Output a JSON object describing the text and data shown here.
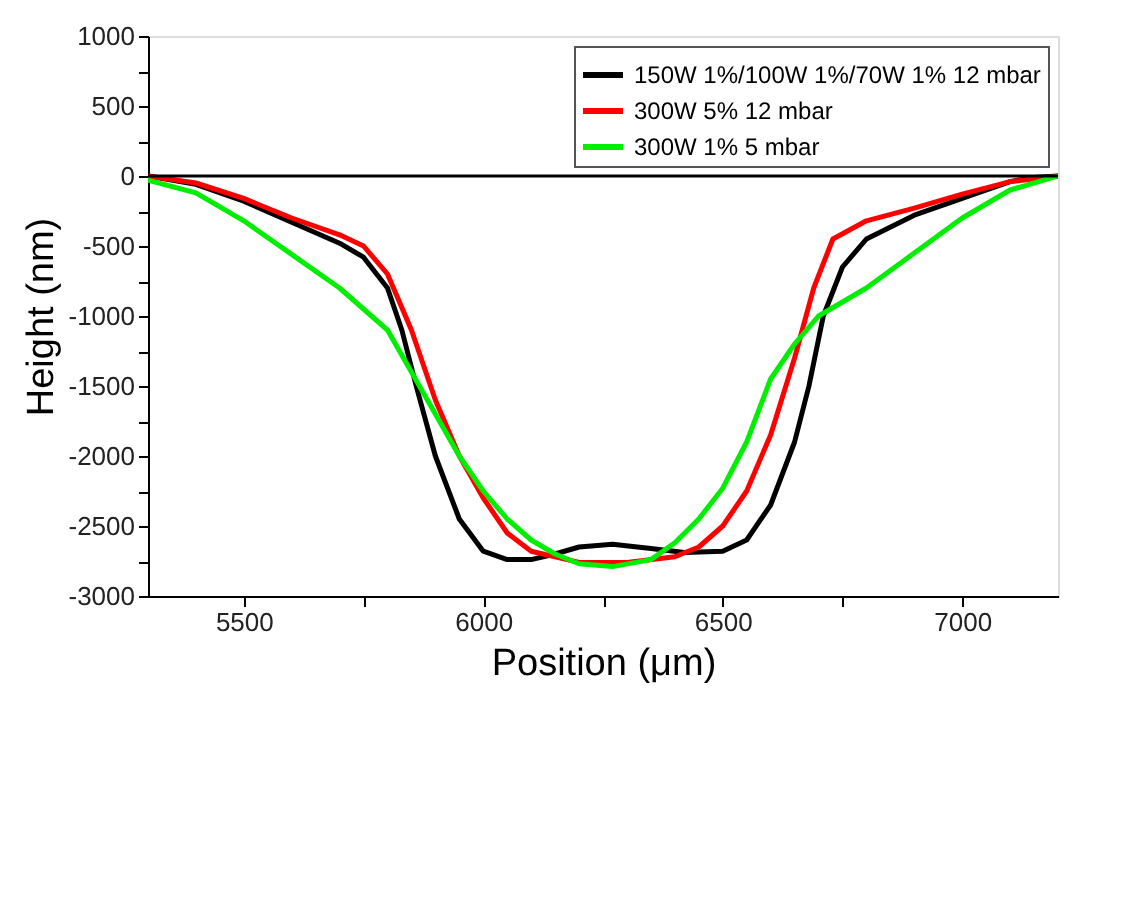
{
  "chart_data": {
    "type": "line",
    "xlabel": "Position (μm)",
    "ylabel": "Height (nm)",
    "xlim": [
      5300,
      7200
    ],
    "ylim": [
      -3000,
      1000
    ],
    "xticks": [
      5500,
      {
        "value": 5750,
        "label": null
      },
      6000,
      {
        "value": 6250,
        "label": null
      },
      6500,
      {
        "value": 6750,
        "label": null
      },
      7000
    ],
    "yticks": [
      -3000,
      {
        "value": -2750,
        "label": null
      },
      -2500,
      {
        "value": -2250,
        "label": null
      },
      -2000,
      {
        "value": -1750,
        "label": null
      },
      -1500,
      {
        "value": -1250,
        "label": null
      },
      -1000,
      {
        "value": -750,
        "label": null
      },
      -500,
      {
        "value": -250,
        "label": null
      },
      0,
      {
        "value": 250,
        "label": null
      },
      500,
      {
        "value": 750,
        "label": null
      },
      1000
    ],
    "grid": false,
    "legend": "top right",
    "line_style": "solid",
    "marker": "none",
    "ref_lines": [
      {
        "axis": "y",
        "value": 0,
        "color": "#000000"
      }
    ],
    "series": [
      {
        "name": "150W 1%/100W 1%/70W 1% 12 mbar",
        "color": "#000000",
        "x": [
          5300,
          5400,
          5500,
          5600,
          5700,
          5750,
          5800,
          5830,
          5860,
          5900,
          5950,
          6000,
          6050,
          6100,
          6150,
          6200,
          6270,
          6350,
          6420,
          6500,
          6550,
          6600,
          6650,
          6680,
          6710,
          6750,
          6800,
          6900,
          7000,
          7100,
          7150,
          7200
        ],
        "values": [
          0,
          -60,
          -180,
          -330,
          -480,
          -580,
          -800,
          -1100,
          -1500,
          -2000,
          -2450,
          -2680,
          -2740,
          -2740,
          -2700,
          -2650,
          -2630,
          -2660,
          -2690,
          -2680,
          -2600,
          -2350,
          -1900,
          -1500,
          -1000,
          -650,
          -450,
          -280,
          -160,
          -40,
          -10,
          0
        ]
      },
      {
        "name": "300W 5% 12 mbar",
        "color": "#ff0000",
        "x": [
          5300,
          5400,
          5500,
          5600,
          5700,
          5750,
          5800,
          5850,
          5900,
          5950,
          6000,
          6050,
          6100,
          6200,
          6300,
          6400,
          6450,
          6500,
          6550,
          6600,
          6650,
          6690,
          6730,
          6800,
          6900,
          7000,
          7100,
          7200
        ],
        "values": [
          0,
          -50,
          -160,
          -300,
          -420,
          -500,
          -700,
          -1100,
          -1600,
          -2000,
          -2300,
          -2550,
          -2680,
          -2760,
          -2760,
          -2720,
          -2650,
          -2500,
          -2250,
          -1850,
          -1300,
          -800,
          -450,
          -320,
          -230,
          -130,
          -40,
          0
        ]
      },
      {
        "name": "300W 1% 5 mbar",
        "color": "#00ee00",
        "x": [
          5300,
          5400,
          5500,
          5600,
          5700,
          5800,
          5850,
          5900,
          5950,
          6000,
          6050,
          6100,
          6150,
          6200,
          6270,
          6350,
          6400,
          6450,
          6500,
          6550,
          6600,
          6650,
          6700,
          6800,
          6900,
          7000,
          7100,
          7200
        ],
        "values": [
          -30,
          -120,
          -320,
          -560,
          -800,
          -1100,
          -1400,
          -1700,
          -2000,
          -2250,
          -2450,
          -2600,
          -2700,
          -2770,
          -2790,
          -2740,
          -2620,
          -2450,
          -2230,
          -1900,
          -1450,
          -1200,
          -1000,
          -800,
          -550,
          -300,
          -100,
          0
        ]
      }
    ]
  }
}
